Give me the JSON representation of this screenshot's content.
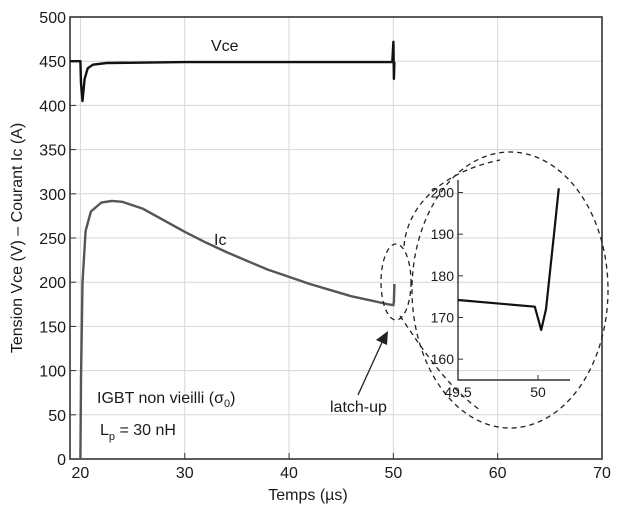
{
  "chart_data": {
    "type": "line",
    "xlabel": "Temps (µs)",
    "ylabel": "Tension Vce (V) – Courant Ic (A)",
    "xlim": [
      19,
      70
    ],
    "ylim": [
      0,
      500
    ],
    "xticks": [
      "20",
      "30",
      "40",
      "50",
      "60",
      "70"
    ],
    "yticks": [
      "0",
      "50",
      "100",
      "150",
      "200",
      "250",
      "300",
      "350",
      "400",
      "450",
      "500"
    ],
    "grid": true,
    "series": [
      {
        "name": "Vce",
        "color": "#111111",
        "points": [
          [
            19,
            450
          ],
          [
            20,
            450
          ],
          [
            20.05,
            425
          ],
          [
            20.2,
            405
          ],
          [
            20.4,
            430
          ],
          [
            20.7,
            442
          ],
          [
            21.2,
            446
          ],
          [
            22.5,
            448
          ],
          [
            30,
            449
          ],
          [
            40,
            449
          ],
          [
            49.9,
            449
          ],
          [
            50,
            472
          ],
          [
            50.05,
            430
          ],
          [
            50.1,
            449
          ]
        ]
      },
      {
        "name": "Ic",
        "color": "#555555",
        "points": [
          [
            20,
            0
          ],
          [
            20.05,
            90
          ],
          [
            20.2,
            200
          ],
          [
            20.5,
            258
          ],
          [
            21,
            280
          ],
          [
            22,
            290
          ],
          [
            23,
            292
          ],
          [
            24,
            291
          ],
          [
            26,
            283
          ],
          [
            28,
            270
          ],
          [
            30,
            257
          ],
          [
            32,
            245
          ],
          [
            34,
            234
          ],
          [
            36,
            224
          ],
          [
            38,
            214
          ],
          [
            40,
            206
          ],
          [
            42,
            198
          ],
          [
            44,
            191
          ],
          [
            46,
            184
          ],
          [
            48,
            179
          ],
          [
            49.5,
            175
          ],
          [
            50,
            174
          ],
          [
            50.05,
            178
          ],
          [
            50.1,
            198
          ]
        ]
      }
    ],
    "annotations": {
      "vce_label": "Vce",
      "ic_label": "Ic",
      "latch_label": "latch-up",
      "device_label": "IGBT non vieilli (σ",
      "device_sub": "0",
      "device_close": ")",
      "lp_main": "L",
      "lp_sub": "p",
      "lp_rest": " = 30 nH"
    },
    "inset": {
      "xlim": [
        49.5,
        50.2
      ],
      "ylim": [
        155,
        203
      ],
      "xticks": [
        "49.5",
        "50"
      ],
      "yticks": [
        "160",
        "170",
        "180",
        "190",
        "200"
      ],
      "points": [
        [
          49.5,
          174.2
        ],
        [
          49.98,
          172.6
        ],
        [
          50.02,
          167
        ],
        [
          50.05,
          172
        ],
        [
          50.1,
          190
        ],
        [
          50.13,
          201
        ]
      ]
    }
  }
}
